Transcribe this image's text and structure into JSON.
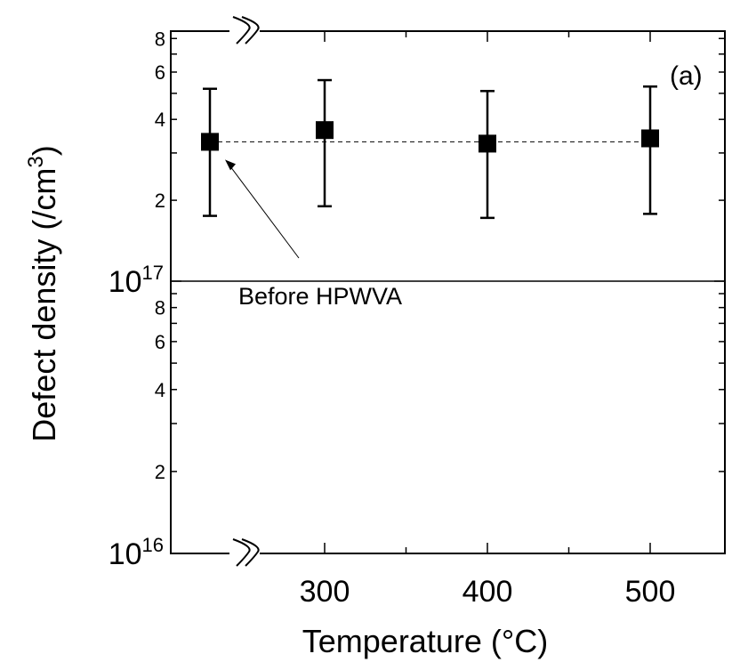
{
  "chart_data": {
    "type": "scatter",
    "xlabel": "Temperature (°C)",
    "ylabel": "Defect density (/cm",
    "ylabel_sup": "3",
    "ylabel_close": ")",
    "panel_label": "(a)",
    "x_ticks": [
      {
        "value": 300,
        "label": "300"
      },
      {
        "value": 400,
        "label": "400"
      },
      {
        "value": 500,
        "label": "500"
      }
    ],
    "xlim": [
      230,
      550
    ],
    "y_scale": "log",
    "y_segments": [
      {
        "range": [
          1e+16,
          1e+17
        ],
        "ticks": [
          {
            "value": 2e+16,
            "label": "2"
          },
          {
            "value": 4e+16,
            "label": "4"
          },
          {
            "value": 6e+16,
            "label": "6"
          },
          {
            "value": 8e+16,
            "label": "8"
          }
        ]
      },
      {
        "range": [
          1e+17,
          8.5e+17
        ],
        "ticks": [
          {
            "value": 2e+17,
            "label": "2"
          },
          {
            "value": 4e+17,
            "label": "4"
          },
          {
            "value": 6e+17,
            "label": "6"
          },
          {
            "value": 8e+17,
            "label": "8"
          }
        ]
      }
    ],
    "y_decade_labels": [
      {
        "value": 1e+16,
        "base": "10",
        "exp": "16"
      },
      {
        "value": 1e+17,
        "base": "10",
        "exp": "17"
      }
    ],
    "axis_break": true,
    "series": [
      {
        "points": [
          {
            "x": 200,
            "y": 3.3e+17,
            "err_low": 1.75e+17,
            "err_high": 5.2e+17
          },
          {
            "x": 300,
            "y": 3.65e+17,
            "err_low": 1.9e+17,
            "err_high": 5.6e+17
          },
          {
            "x": 400,
            "y": 3.25e+17,
            "err_low": 1.72e+17,
            "err_high": 5.1e+17
          },
          {
            "x": 500,
            "y": 3.4e+17,
            "err_low": 1.78e+17,
            "err_high": 5.3e+17
          }
        ]
      }
    ],
    "reference_line": {
      "y": 3.3e+17,
      "style": "dashed"
    },
    "annotation": {
      "text": "Before HPWVA",
      "points_to_x": 200,
      "points_to_y": 3.3e+17
    }
  }
}
